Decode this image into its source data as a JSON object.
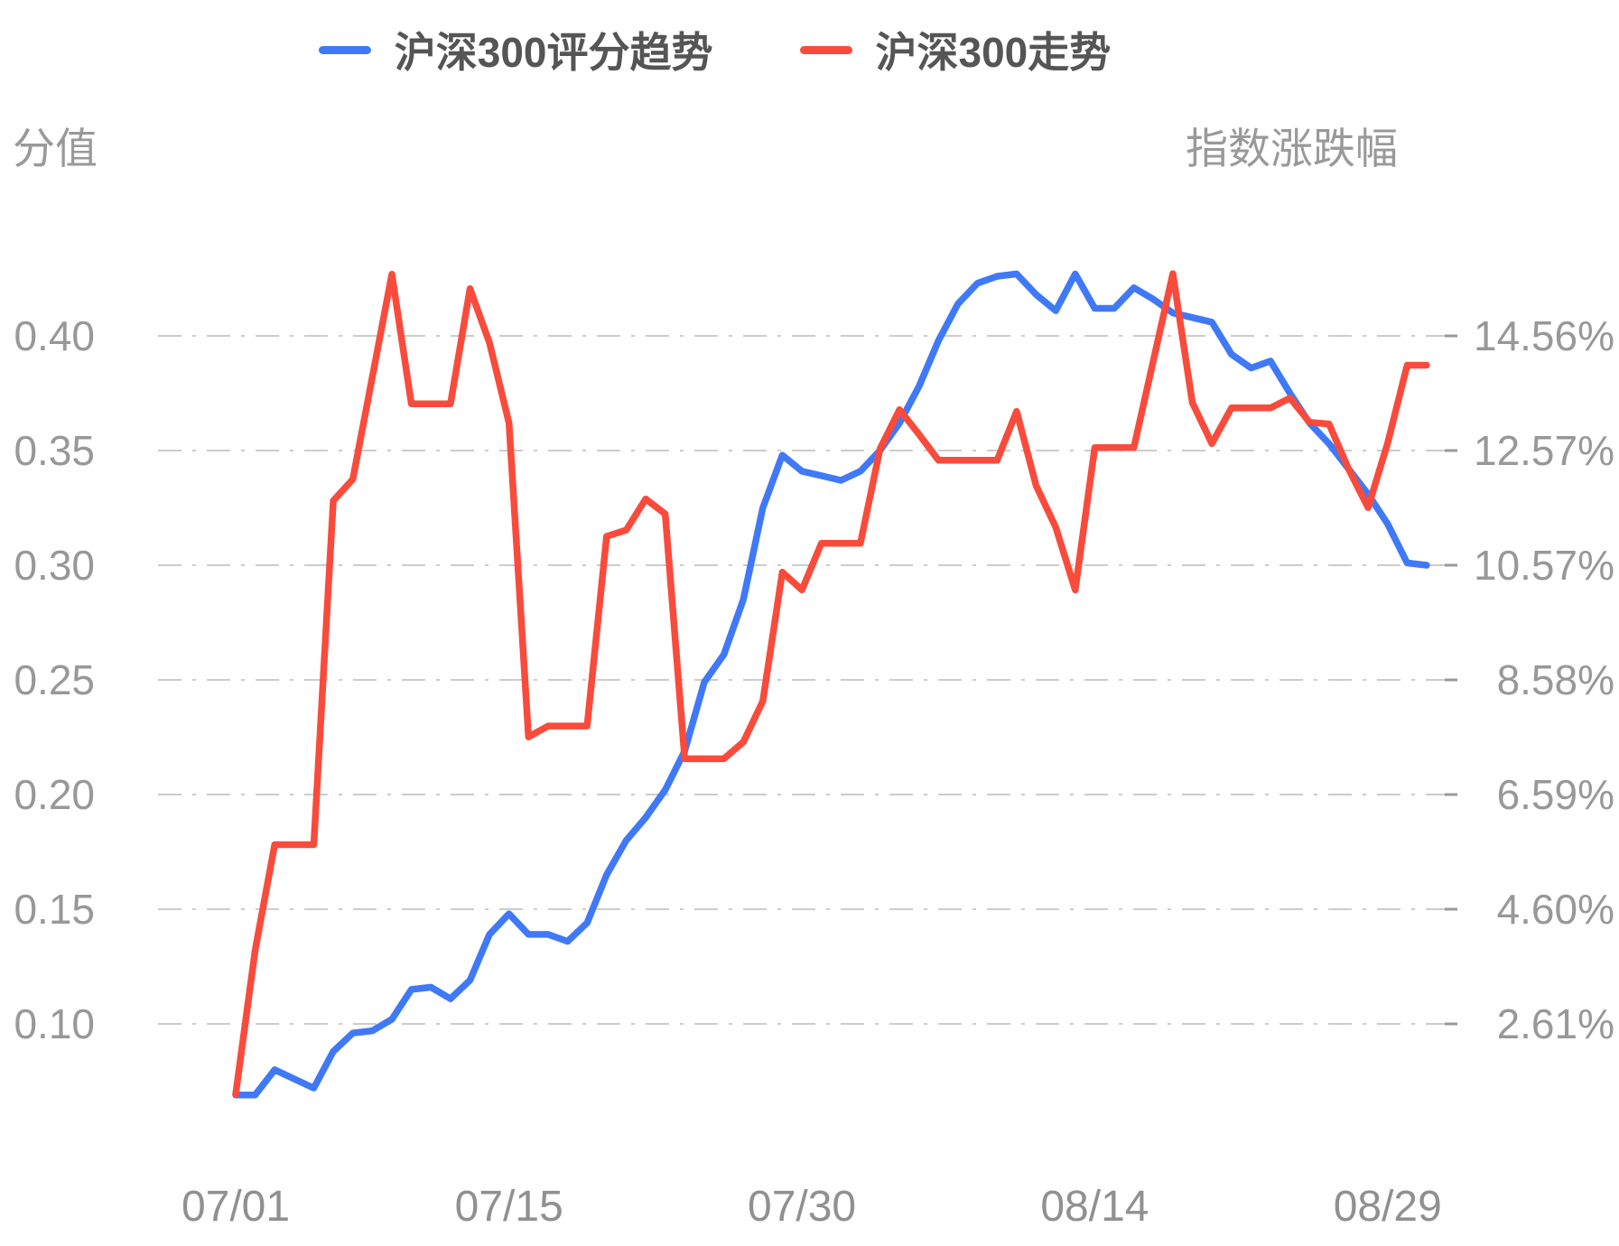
{
  "legend": [
    {
      "label": "沪深300评分趋势",
      "color": "#4079f8"
    },
    {
      "label": "沪深300走势",
      "color": "#f94b3b"
    }
  ],
  "chart_data": {
    "type": "line",
    "title": "",
    "left_axis": {
      "title": "分值",
      "tick_labels": [
        "0.40",
        "0.35",
        "0.30",
        "0.25",
        "0.20",
        "0.15",
        "0.10"
      ]
    },
    "right_axis": {
      "title": "指数涨跌幅",
      "tick_labels": [
        "14.56%",
        "12.57%",
        "10.57%",
        "8.58%",
        "6.59%",
        "4.60%",
        "2.61%"
      ]
    },
    "x_axis": {
      "start_date": "07/01",
      "end_date": "08/31",
      "n_points": 62,
      "tick_indices": [
        0,
        14,
        29,
        44,
        59
      ],
      "tick_labels": [
        "07/01",
        "07/15",
        "07/30",
        "08/14",
        "08/29"
      ]
    },
    "grid": {
      "dash_dot": true,
      "color": "#cccccc"
    },
    "series": [
      {
        "name": "沪深300评分趋势",
        "axis": "left",
        "color": "#4079f8",
        "values": [
          0.069,
          0.069,
          0.08,
          0.076,
          0.072,
          0.088,
          0.096,
          0.097,
          0.102,
          0.115,
          0.116,
          0.111,
          0.119,
          0.139,
          0.148,
          0.139,
          0.139,
          0.136,
          0.144,
          0.165,
          0.18,
          0.19,
          0.202,
          0.219,
          0.249,
          0.261,
          0.285,
          0.325,
          0.348,
          0.341,
          0.339,
          0.337,
          0.341,
          0.35,
          0.362,
          0.378,
          0.398,
          0.414,
          0.423,
          0.426,
          0.427,
          0.418,
          0.411,
          0.427,
          0.412,
          0.412,
          0.421,
          0.416,
          0.41,
          0.408,
          0.406,
          0.392,
          0.386,
          0.389,
          0.375,
          0.362,
          0.353,
          0.342,
          0.331,
          0.318,
          0.301,
          0.3
        ]
      },
      {
        "name": "沪深300走势",
        "axis": "right",
        "color": "#f94b3b",
        "values": [
          1.4,
          3.9,
          5.73,
          5.73,
          5.73,
          11.7,
          12.07,
          13.85,
          15.63,
          13.38,
          13.38,
          13.38,
          15.38,
          14.44,
          13.05,
          7.6,
          7.79,
          7.79,
          7.79,
          11.08,
          11.19,
          11.73,
          11.47,
          7.22,
          7.22,
          7.22,
          7.51,
          8.22,
          10.46,
          10.15,
          10.96,
          10.96,
          10.96,
          12.6,
          13.28,
          12.85,
          12.4,
          12.4,
          12.4,
          12.4,
          13.25,
          11.96,
          11.24,
          10.15,
          12.62,
          12.62,
          12.62,
          14.13,
          15.64,
          13.4,
          12.69,
          13.31,
          13.31,
          13.31,
          13.48,
          13.06,
          13.03,
          12.25,
          11.58,
          12.7,
          14.05,
          14.05
        ]
      }
    ]
  }
}
